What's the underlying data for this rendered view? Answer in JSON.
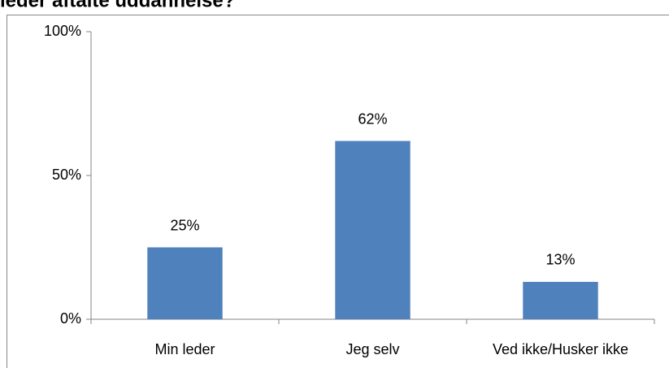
{
  "chart_data": {
    "type": "bar",
    "title": "leder aftalte uddannelse?",
    "categories": [
      "Min leder",
      "Jeg selv",
      "Ved ikke/Husker ikke"
    ],
    "values": [
      25,
      62,
      13
    ],
    "value_labels": [
      "25%",
      "62%",
      "13%"
    ],
    "color": "#4f81bd",
    "ylim": [
      0,
      100
    ],
    "yticks": [
      {
        "value": 0,
        "label": "0%"
      },
      {
        "value": 50,
        "label": "50%"
      },
      {
        "value": 100,
        "label": "100%"
      }
    ],
    "grid": false
  }
}
